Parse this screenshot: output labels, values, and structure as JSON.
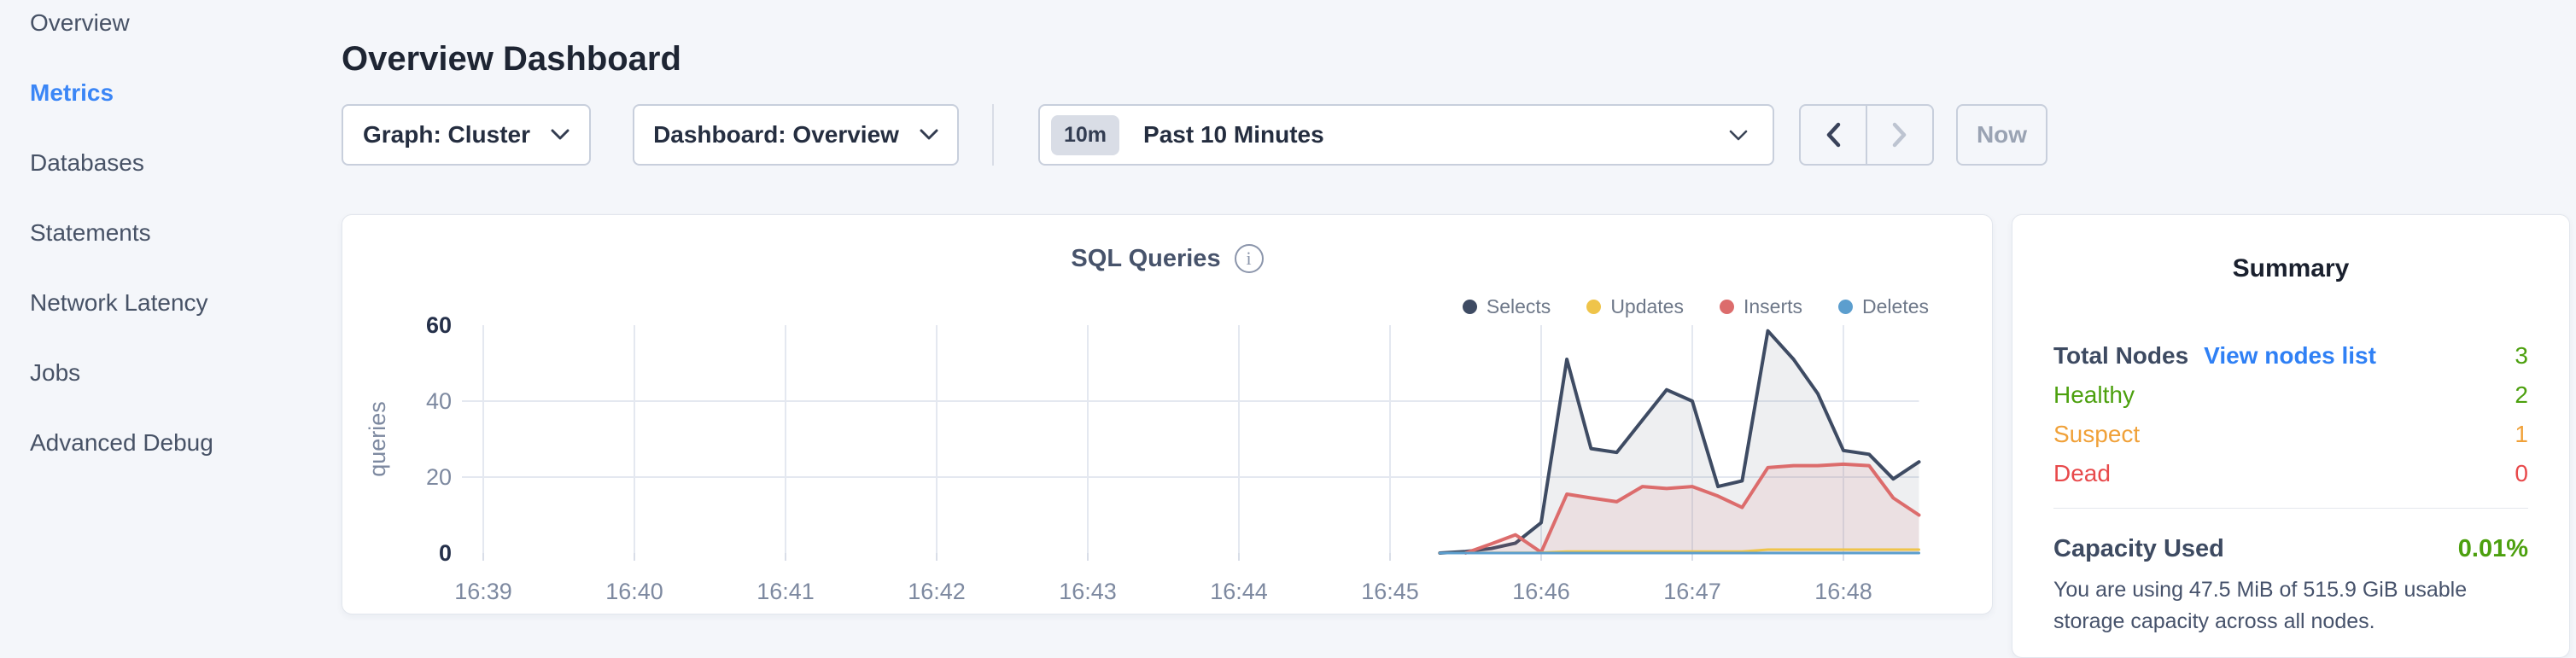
{
  "sidebar": {
    "items": [
      {
        "label": "Overview",
        "active": false
      },
      {
        "label": "Metrics",
        "active": true
      },
      {
        "label": "Databases",
        "active": false
      },
      {
        "label": "Statements",
        "active": false
      },
      {
        "label": "Network Latency",
        "active": false
      },
      {
        "label": "Jobs",
        "active": false
      },
      {
        "label": "Advanced Debug",
        "active": false
      }
    ]
  },
  "header": {
    "title": "Overview Dashboard"
  },
  "toolbar": {
    "graph_dropdown_label": "Graph: Cluster",
    "dashboard_dropdown_label": "Dashboard: Overview",
    "time_selector": {
      "badge": "10m",
      "label": "Past 10 Minutes"
    },
    "now_button_label": "Now"
  },
  "chart_data": {
    "type": "area",
    "title": "SQL Queries",
    "ylabel": "queries",
    "ylim": [
      0,
      60
    ],
    "y_ticks": [
      0,
      20,
      40,
      60
    ],
    "grid": true,
    "legend_position": "top-right",
    "x_ticks": [
      "16:39",
      "16:40",
      "16:41",
      "16:42",
      "16:43",
      "16:44",
      "16:45",
      "16:46",
      "16:47",
      "16:48"
    ],
    "x_unit": "minutes after 16:39",
    "x_domain": [
      0,
      9.5
    ],
    "series": [
      {
        "name": "Selects",
        "color": "#3e4b63",
        "fill": "rgba(62,75,99,0.09)",
        "points": [
          [
            6.33,
            0
          ],
          [
            6.5,
            0.4
          ],
          [
            6.67,
            1.2
          ],
          [
            6.83,
            2.6
          ],
          [
            7.0,
            8
          ],
          [
            7.17,
            51
          ],
          [
            7.33,
            27.5
          ],
          [
            7.5,
            26.5
          ],
          [
            7.67,
            35
          ],
          [
            7.83,
            43
          ],
          [
            8.0,
            40
          ],
          [
            8.17,
            17.5
          ],
          [
            8.33,
            19
          ],
          [
            8.5,
            58.5
          ],
          [
            8.67,
            51
          ],
          [
            8.83,
            42
          ],
          [
            9.0,
            27
          ],
          [
            9.17,
            26
          ],
          [
            9.33,
            19.5
          ],
          [
            9.5,
            24
          ]
        ]
      },
      {
        "name": "Updates",
        "color": "#efc44a",
        "fill": null,
        "points": [
          [
            6.33,
            0
          ],
          [
            7.0,
            0.1
          ],
          [
            7.17,
            0.4
          ],
          [
            8.33,
            0.4
          ],
          [
            8.5,
            0.9
          ],
          [
            9.5,
            0.9
          ]
        ]
      },
      {
        "name": "Inserts",
        "color": "#dc6c6c",
        "fill": "rgba(220,108,108,0.11)",
        "points": [
          [
            6.5,
            0
          ],
          [
            6.67,
            2.4
          ],
          [
            6.83,
            4.8
          ],
          [
            7.0,
            0.2
          ],
          [
            7.17,
            15.5
          ],
          [
            7.33,
            14.5
          ],
          [
            7.5,
            13.5
          ],
          [
            7.67,
            17.5
          ],
          [
            7.83,
            17
          ],
          [
            8.0,
            17.5
          ],
          [
            8.17,
            15
          ],
          [
            8.33,
            12
          ],
          [
            8.5,
            22.5
          ],
          [
            8.67,
            23
          ],
          [
            8.83,
            23
          ],
          [
            9.0,
            23.4
          ],
          [
            9.17,
            23
          ],
          [
            9.33,
            14.5
          ],
          [
            9.5,
            10
          ]
        ]
      },
      {
        "name": "Deletes",
        "color": "#5c9ece",
        "fill": null,
        "points": [
          [
            6.33,
            0
          ],
          [
            9.5,
            0
          ]
        ]
      }
    ]
  },
  "summary": {
    "title": "Summary",
    "rows": [
      {
        "label": "Total Nodes",
        "link": "View nodes list",
        "value": "3"
      },
      {
        "label": "Healthy",
        "value": "2"
      },
      {
        "label": "Suspect",
        "value": "1"
      },
      {
        "label": "Dead",
        "value": "0"
      }
    ],
    "capacity": {
      "label": "Capacity Used",
      "value": "0.01%"
    },
    "description": "You are using 47.5 MiB of 515.9 GiB usable storage capacity across all nodes."
  },
  "colors": {
    "page_background": "#f4f6fa",
    "accent_blue": "#3b86f6",
    "healthy_green": "#4ca00e",
    "suspect_orange": "#f0a139",
    "dead_red": "#e8494b",
    "axis_label_gray": "#7d89a0",
    "gridline": "#e4e8f0"
  }
}
